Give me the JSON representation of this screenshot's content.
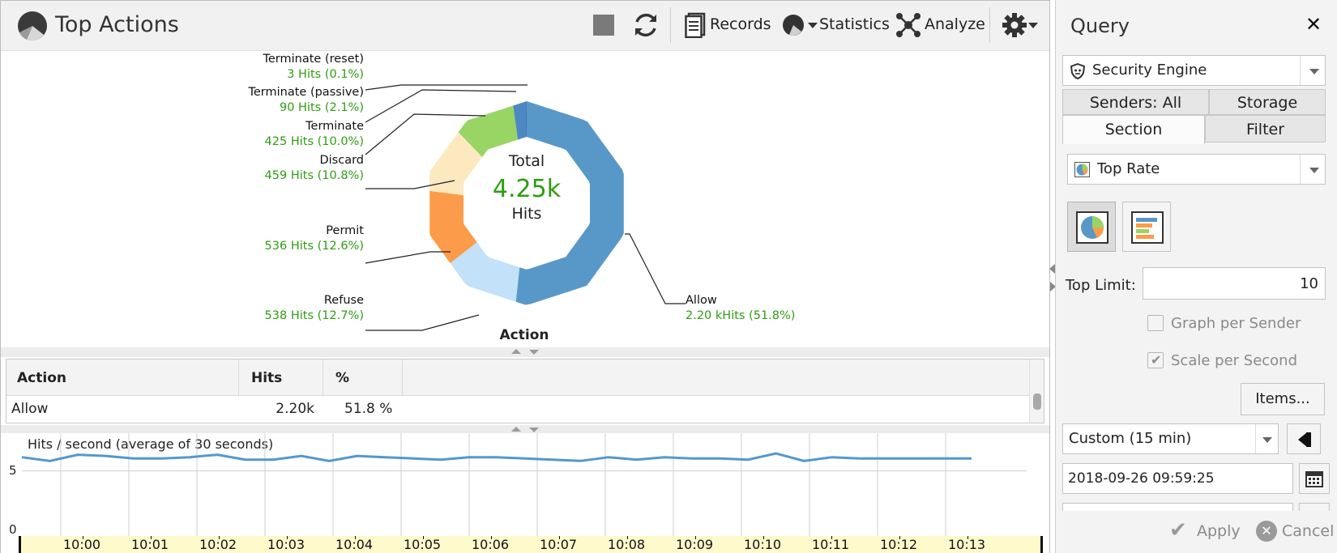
{
  "header": {
    "title": "Top Actions",
    "records_label": "Records",
    "statistics_label": "Statistics",
    "analyze_label": "Analyze"
  },
  "donut": {
    "center_top": "Total",
    "center_value": "4.25k",
    "center_bottom": "Hits",
    "caption": "Action",
    "slices": [
      {
        "name": "Allow",
        "label": "2.20 kHits (51.8%)",
        "value": 2200,
        "percent": 51.8,
        "color": "#5898c9"
      },
      {
        "name": "Refuse",
        "label": "538 Hits (12.7%)",
        "value": 538,
        "percent": 12.7,
        "color": "#c3e1f8"
      },
      {
        "name": "Permit",
        "label": "536 Hits (12.6%)",
        "value": 536,
        "percent": 12.6,
        "color": "#fc9c4a"
      },
      {
        "name": "Discard",
        "label": "459 Hits (10.8%)",
        "value": 459,
        "percent": 10.8,
        "color": "#fde9bf"
      },
      {
        "name": "Terminate",
        "label": "425 Hits (10.0%)",
        "value": 425,
        "percent": 10.0,
        "color": "#98d565"
      },
      {
        "name": "Terminate (passive)",
        "label": "90 Hits (2.1%)",
        "value": 90,
        "percent": 2.1,
        "color": "#4d88c3"
      },
      {
        "name": "Terminate (reset)",
        "label": "3 Hits (0.1%)",
        "value": 3,
        "percent": 0.1,
        "color": "#2f6aa8"
      }
    ]
  },
  "table": {
    "headers": [
      "Action",
      "Hits",
      "%"
    ],
    "rows": [
      {
        "action": "Allow",
        "hits": "2.20k",
        "percent": "51.8 %"
      }
    ]
  },
  "chart_data": {
    "type": "line",
    "title": "Hits / second (average of 30 seconds)",
    "x": [
      "09:59:30",
      "09:59:54",
      "10:00:18",
      "10:00:42",
      "10:01:06",
      "10:01:30",
      "10:01:54",
      "10:02:18",
      "10:02:42",
      "10:03:06",
      "10:03:30",
      "10:03:54",
      "10:04:18",
      "10:04:42",
      "10:05:06",
      "10:05:30",
      "10:05:54",
      "10:06:18",
      "10:06:42",
      "10:07:06",
      "10:07:30",
      "10:07:54",
      "10:08:18",
      "10:08:42",
      "10:09:06",
      "10:09:30",
      "10:09:54",
      "10:10:18",
      "10:10:42",
      "10:11:06",
      "10:11:30",
      "10:11:54",
      "10:12:18",
      "10:12:42",
      "10:13:06"
    ],
    "series": [
      {
        "values": [
          6.1,
          5.8,
          6.3,
          6.2,
          6.0,
          6.0,
          6.1,
          6.3,
          5.9,
          5.9,
          6.2,
          5.8,
          6.2,
          6.1,
          6.0,
          5.9,
          6.1,
          6.1,
          6.0,
          5.9,
          5.8,
          6.1,
          5.9,
          6.1,
          6.0,
          6.0,
          5.9,
          6.4,
          5.8,
          6.1,
          6.0,
          6.0,
          6.0,
          6.0,
          6.0
        ],
        "color": "#5498cd"
      }
    ],
    "y_ticks": [
      "0",
      "5"
    ],
    "x_ticks": [
      "10:00",
      "10:01",
      "10:02",
      "10:03",
      "10:04",
      "10:05",
      "10:06",
      "10:07",
      "10:08",
      "10:09",
      "10:10",
      "10:11",
      "10:12",
      "10:13"
    ],
    "ylim": [
      0,
      7.5
    ],
    "grid": true
  },
  "query": {
    "title": "Query",
    "engine": "Security Engine",
    "tabs_row1": [
      "Senders: All",
      "Storage"
    ],
    "tabs_row2": [
      "Section",
      "Filter"
    ],
    "section": "Top Rate",
    "top_limit_label": "Top Limit:",
    "top_limit_value": "10",
    "graph_per_sender": "Graph per Sender",
    "scale_per_second": "Scale per Second",
    "items_button": "Items...",
    "range": "Custom (15 min)",
    "start_time": "2018-09-26 09:59:25",
    "apply": "Apply",
    "cancel": "Cancel"
  }
}
